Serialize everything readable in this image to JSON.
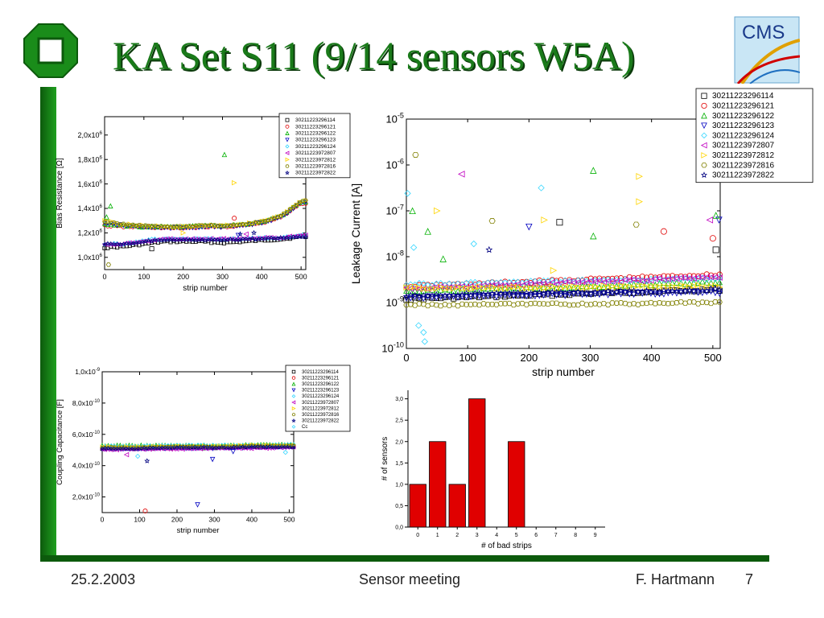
{
  "slide": {
    "title": "KA Set S11 (9/14 sensors W5A)",
    "footer_date": "25.2.2003",
    "footer_event": "Sensor meeting",
    "footer_author": "F. Hartmann",
    "page_number": "7",
    "logo_text": "CMS"
  },
  "colors": {
    "green_frame": "#1a8c1a",
    "dark_green": "#0c5a0c",
    "bar_red": "#e00000"
  },
  "series_colors": [
    "#000000",
    "#e00000",
    "#00b000",
    "#0000c0",
    "#33d6ff",
    "#c000c0",
    "#ffd400",
    "#808000",
    "#000080"
  ],
  "series_markers": [
    "square",
    "circle",
    "triangle-up",
    "triangle-down",
    "diamond",
    "triangle-left",
    "triangle-right",
    "hexagon",
    "star"
  ],
  "chart_data": [
    {
      "id": "bias",
      "type": "scatter",
      "ylabel": "Bias Resistance [Ω]",
      "xlabel": "strip number",
      "xlim": [
        0,
        512
      ],
      "ylim": [
        900000,
        2150000
      ],
      "xticks": [
        0,
        100,
        200,
        300,
        400,
        500
      ],
      "yticks": [
        1000000,
        1200000,
        1400000,
        1600000,
        1800000,
        2000000
      ],
      "ytick_labels": [
        {
          "mant": "1,0x10",
          "exp": "6"
        },
        {
          "mant": "1,2x10",
          "exp": "6"
        },
        {
          "mant": "1,4x10",
          "exp": "6"
        },
        {
          "mant": "1,6x10",
          "exp": "6"
        },
        {
          "mant": "1,8x10",
          "exp": "6"
        },
        {
          "mant": "2,0x10",
          "exp": "6"
        }
      ],
      "legend": [
        "30211223296114",
        "30211223296121",
        "30211223296122",
        "30211223296123",
        "30211223296124",
        "30211223972807",
        "30211223972812",
        "30211223972816",
        "30211223972822"
      ],
      "series": [
        {
          "name": "30211223296114",
          "x": [
            0,
            50,
            100,
            150,
            200,
            250,
            300,
            350,
            400,
            450,
            500
          ],
          "y": [
            1080000,
            1090000,
            1110000,
            1130000,
            1130000,
            1130000,
            1120000,
            1130000,
            1140000,
            1150000,
            1170000
          ]
        },
        {
          "name": "30211223296121",
          "x": [
            0,
            50,
            100,
            150,
            200,
            250,
            300,
            350,
            400,
            450,
            500
          ],
          "y": [
            1260000,
            1250000,
            1250000,
            1240000,
            1240000,
            1250000,
            1250000,
            1260000,
            1280000,
            1330000,
            1440000
          ]
        },
        {
          "name": "30211223296122",
          "x": [
            0,
            50,
            100,
            150,
            200,
            250,
            300,
            350,
            400,
            450,
            500
          ],
          "y": [
            1270000,
            1260000,
            1250000,
            1250000,
            1250000,
            1260000,
            1260000,
            1270000,
            1290000,
            1340000,
            1450000
          ]
        },
        {
          "name": "30211223296123",
          "x": [
            0,
            50,
            100,
            150,
            200,
            250,
            300,
            350,
            400,
            450,
            500
          ],
          "y": [
            1280000,
            1260000,
            1250000,
            1240000,
            1240000,
            1250000,
            1250000,
            1260000,
            1280000,
            1330000,
            1450000
          ]
        },
        {
          "name": "30211223296124",
          "x": [
            0,
            50,
            100,
            150,
            200,
            250,
            300,
            350,
            400,
            450,
            500
          ],
          "y": [
            1110000,
            1110000,
            1140000,
            1150000,
            1150000,
            1150000,
            1150000,
            1150000,
            1160000,
            1160000,
            1180000
          ]
        },
        {
          "name": "30211223972807",
          "x": [
            0,
            50,
            100,
            150,
            200,
            250,
            300,
            350,
            400,
            450,
            500
          ],
          "y": [
            1100000,
            1110000,
            1130000,
            1150000,
            1150000,
            1150000,
            1150000,
            1150000,
            1160000,
            1160000,
            1180000
          ]
        },
        {
          "name": "30211223972812",
          "x": [
            0,
            50,
            100,
            150,
            200,
            250,
            300,
            350,
            400,
            450,
            500
          ],
          "y": [
            1300000,
            1270000,
            1260000,
            1250000,
            1250000,
            1260000,
            1260000,
            1270000,
            1290000,
            1340000,
            1460000
          ]
        },
        {
          "name": "30211223972816",
          "x": [
            0,
            50,
            100,
            150,
            200,
            250,
            300,
            350,
            400,
            450,
            500
          ],
          "y": [
            1290000,
            1270000,
            1260000,
            1250000,
            1250000,
            1260000,
            1260000,
            1270000,
            1290000,
            1340000,
            1460000
          ]
        },
        {
          "name": "30211223972822",
          "x": [
            0,
            50,
            100,
            150,
            200,
            250,
            300,
            350,
            400,
            450,
            500
          ],
          "y": [
            1110000,
            1110000,
            1130000,
            1140000,
            1140000,
            1140000,
            1140000,
            1150000,
            1150000,
            1160000,
            1170000
          ]
        }
      ],
      "outliers": [
        {
          "s": 2,
          "x": 305,
          "y": 1840000
        },
        {
          "s": 6,
          "x": 330,
          "y": 1610000
        },
        {
          "s": 2,
          "x": 15,
          "y": 1420000
        },
        {
          "s": 1,
          "x": 330,
          "y": 1320000
        },
        {
          "s": 7,
          "x": 10,
          "y": 940000
        },
        {
          "s": 0,
          "x": 120,
          "y": 1070000
        },
        {
          "s": 8,
          "x": 345,
          "y": 1190000
        },
        {
          "s": 5,
          "x": 360,
          "y": 1190000
        },
        {
          "s": 6,
          "x": 200,
          "y": 1200000
        },
        {
          "s": 3,
          "x": 340,
          "y": 1180000
        },
        {
          "s": 2,
          "x": 5,
          "y": 1330000
        },
        {
          "s": 8,
          "x": 380,
          "y": 1200000
        }
      ]
    },
    {
      "id": "leak",
      "type": "scatter",
      "ylabel": "Leakage Current [A]",
      "xlabel": "strip number",
      "yscale": "log",
      "xlim": [
        0,
        512
      ],
      "ylim_exp": [
        -10,
        -5
      ],
      "xticks": [
        0,
        100,
        200,
        300,
        400,
        500
      ],
      "yticks_exp": [
        -10,
        -9,
        -8,
        -7,
        -6,
        -5
      ],
      "ytick_labels": [
        {
          "mant": "10",
          "exp": "-10"
        },
        {
          "mant": "10",
          "exp": "-9"
        },
        {
          "mant": "10",
          "exp": "-8"
        },
        {
          "mant": "10",
          "exp": "-7"
        },
        {
          "mant": "10",
          "exp": "-6"
        },
        {
          "mant": "10",
          "exp": "-5"
        }
      ],
      "legend": [
        "30211223296114",
        "30211223296121",
        "30211223296122",
        "30211223296123",
        "30211223296124",
        "30211223972807",
        "30211223972812",
        "30211223972816",
        "30211223972822"
      ],
      "series_levels_exp": [
        {
          "name": "30211223296114",
          "x": [
            0,
            100,
            200,
            300,
            400,
            500
          ],
          "y_exp": [
            -8.92,
            -8.88,
            -8.84,
            -8.8,
            -8.76,
            -8.72
          ]
        },
        {
          "name": "30211223296121",
          "x": [
            0,
            100,
            200,
            300,
            400,
            500
          ],
          "y_exp": [
            -8.65,
            -8.6,
            -8.55,
            -8.5,
            -8.45,
            -8.4
          ]
        },
        {
          "name": "30211223296122",
          "x": [
            0,
            100,
            200,
            300,
            400,
            500
          ],
          "y_exp": [
            -8.75,
            -8.72,
            -8.68,
            -8.65,
            -8.6,
            -8.55
          ]
        },
        {
          "name": "30211223296123",
          "x": [
            0,
            100,
            200,
            300,
            400,
            500
          ],
          "y_exp": [
            -8.9,
            -8.87,
            -8.84,
            -8.82,
            -8.8,
            -8.78
          ]
        },
        {
          "name": "30211223296124",
          "x": [
            0,
            100,
            200,
            300,
            400,
            500
          ],
          "y_exp": [
            -8.6,
            -8.58,
            -8.55,
            -8.52,
            -8.5,
            -8.48
          ]
        },
        {
          "name": "30211223972807",
          "x": [
            0,
            100,
            200,
            300,
            400,
            500
          ],
          "y_exp": [
            -8.7,
            -8.65,
            -8.6,
            -8.55,
            -8.5,
            -8.45
          ]
        },
        {
          "name": "30211223972812",
          "x": [
            0,
            100,
            200,
            300,
            400,
            500
          ],
          "y_exp": [
            -8.68,
            -8.68,
            -8.67,
            -8.66,
            -8.65,
            -8.64
          ]
        },
        {
          "name": "30211223972816",
          "x": [
            0,
            100,
            200,
            300,
            400,
            500
          ],
          "y_exp": [
            -9.05,
            -9.05,
            -9.04,
            -9.03,
            -9.02,
            -9.0
          ]
        },
        {
          "name": "30211223972822",
          "x": [
            0,
            100,
            200,
            300,
            400,
            500
          ],
          "y_exp": [
            -8.85,
            -8.82,
            -8.8,
            -8.78,
            -8.75,
            -8.72
          ]
        }
      ],
      "outliers_exp": [
        {
          "s": 7,
          "x": 15,
          "y": -5.78
        },
        {
          "s": 5,
          "x": 90,
          "y": -6.2
        },
        {
          "s": 2,
          "x": 305,
          "y": -6.12
        },
        {
          "s": 6,
          "x": 380,
          "y": -6.25
        },
        {
          "s": 6,
          "x": 380,
          "y": -6.8
        },
        {
          "s": 4,
          "x": 110,
          "y": -7.72
        },
        {
          "s": 4,
          "x": 2,
          "y": -6.62
        },
        {
          "s": 4,
          "x": 220,
          "y": -6.5
        },
        {
          "s": 2,
          "x": 10,
          "y": -7.0
        },
        {
          "s": 6,
          "x": 50,
          "y": -7.0
        },
        {
          "s": 0,
          "x": 250,
          "y": -7.25
        },
        {
          "s": 7,
          "x": 140,
          "y": -7.22
        },
        {
          "s": 3,
          "x": 200,
          "y": -7.35
        },
        {
          "s": 6,
          "x": 225,
          "y": -7.2
        },
        {
          "s": 7,
          "x": 375,
          "y": -7.3
        },
        {
          "s": 2,
          "x": 305,
          "y": -7.55
        },
        {
          "s": 3,
          "x": 510,
          "y": -7.2
        },
        {
          "s": 2,
          "x": 505,
          "y": -7.1
        },
        {
          "s": 5,
          "x": 495,
          "y": -7.2
        },
        {
          "s": 1,
          "x": 420,
          "y": -7.45
        },
        {
          "s": 0,
          "x": 505,
          "y": -7.85
        },
        {
          "s": 1,
          "x": 500,
          "y": -7.6
        },
        {
          "s": 8,
          "x": 135,
          "y": -7.85
        },
        {
          "s": 2,
          "x": 35,
          "y": -7.45
        },
        {
          "s": 4,
          "x": 20,
          "y": -9.5
        },
        {
          "s": 4,
          "x": 28,
          "y": -9.65
        },
        {
          "s": 4,
          "x": 30,
          "y": -9.85
        },
        {
          "s": 4,
          "x": 12,
          "y": -7.8
        },
        {
          "s": 2,
          "x": 60,
          "y": -8.05
        },
        {
          "s": 6,
          "x": 240,
          "y": -8.3
        }
      ]
    },
    {
      "id": "coupling",
      "type": "scatter",
      "ylabel": "Coupling Capacitance [F]",
      "xlabel": "strip number",
      "xlim": [
        0,
        512
      ],
      "ylim": [
        1e-10,
        1e-09
      ],
      "xticks": [
        0,
        100,
        200,
        300,
        400,
        500
      ],
      "yticks": [
        2e-10,
        4e-10,
        6e-10,
        8e-10,
        1e-09
      ],
      "ytick_labels": [
        {
          "mant": "2,0x10",
          "exp": "-10"
        },
        {
          "mant": "4,0x10",
          "exp": "-10"
        },
        {
          "mant": "6,0x10",
          "exp": "-10"
        },
        {
          "mant": "8,0x10",
          "exp": "-10"
        },
        {
          "mant": "1,0x10",
          "exp": "-9"
        }
      ],
      "legend": [
        "30211223296114",
        "30211223296121",
        "30211223296122",
        "30211223296123",
        "30211223296124",
        "30211223972807",
        "30211223972812",
        "30211223972816",
        "30211223972822",
        "Cc"
      ],
      "series": [
        {
          "name": "30211223296114",
          "x": [
            0,
            100,
            200,
            300,
            400,
            500
          ],
          "y": [
            5.1e-10,
            5.1e-10,
            5.15e-10,
            5.15e-10,
            5.2e-10,
            5.25e-10
          ]
        },
        {
          "name": "30211223296121",
          "x": [
            0,
            100,
            200,
            300,
            400,
            500
          ],
          "y": [
            5.15e-10,
            5.15e-10,
            5.2e-10,
            5.2e-10,
            5.25e-10,
            5.3e-10
          ]
        },
        {
          "name": "30211223296122",
          "x": [
            0,
            100,
            200,
            300,
            400,
            500
          ],
          "y": [
            5.3e-10,
            5.3e-10,
            5.3e-10,
            5.3e-10,
            5.35e-10,
            5.35e-10
          ]
        },
        {
          "name": "30211223296123",
          "x": [
            0,
            100,
            200,
            300,
            400,
            500
          ],
          "y": [
            5.05e-10,
            5.05e-10,
            5.1e-10,
            5.1e-10,
            5.15e-10,
            5.2e-10
          ]
        },
        {
          "name": "30211223296124",
          "x": [
            0,
            100,
            200,
            300,
            400,
            500
          ],
          "y": [
            5.25e-10,
            5.25e-10,
            5.3e-10,
            5.3e-10,
            5.3e-10,
            5.35e-10
          ]
        },
        {
          "name": "30211223972807",
          "x": [
            0,
            100,
            200,
            300,
            400,
            500
          ],
          "y": [
            5e-10,
            5.05e-10,
            5.05e-10,
            5.1e-10,
            5.1e-10,
            5.15e-10
          ]
        },
        {
          "name": "30211223972812",
          "x": [
            0,
            100,
            200,
            300,
            400,
            500
          ],
          "y": [
            5.2e-10,
            5.2e-10,
            5.25e-10,
            5.25e-10,
            5.3e-10,
            5.3e-10
          ]
        },
        {
          "name": "30211223972816",
          "x": [
            0,
            100,
            200,
            300,
            400,
            500
          ],
          "y": [
            5.15e-10,
            5.15e-10,
            5.2e-10,
            5.2e-10,
            5.25e-10,
            5.25e-10
          ]
        },
        {
          "name": "30211223972822",
          "x": [
            0,
            100,
            200,
            300,
            400,
            500
          ],
          "y": [
            5.1e-10,
            5.1e-10,
            5.15e-10,
            5.15e-10,
            5.2e-10,
            5.2e-10
          ]
        }
      ],
      "outliers": [
        {
          "s": 1,
          "x": 115,
          "y": 1.1e-10
        },
        {
          "s": 3,
          "x": 255,
          "y": 1.5e-10
        },
        {
          "s": 3,
          "x": 295,
          "y": 4.4e-10
        },
        {
          "s": 8,
          "x": 120,
          "y": 4.3e-10
        },
        {
          "s": 4,
          "x": 95,
          "y": 4.6e-10
        },
        {
          "s": 5,
          "x": 65,
          "y": 4.7e-10
        },
        {
          "s": 3,
          "x": 350,
          "y": 4.9e-10
        },
        {
          "s": 4,
          "x": 490,
          "y": 4.85e-10
        }
      ]
    },
    {
      "id": "badstrips",
      "type": "bar",
      "xlabel": "# of bad strips",
      "ylabel": "# of sensors",
      "categories": [
        0,
        1,
        2,
        3,
        4,
        5,
        6,
        7,
        8,
        9
      ],
      "values": [
        1,
        2,
        1,
        3,
        0,
        2,
        0,
        0,
        0,
        0
      ],
      "ylim": [
        0,
        3.2
      ],
      "yticks": [
        0,
        0.5,
        1.0,
        1.5,
        2.0,
        2.5,
        3.0
      ],
      "ytick_labels": [
        "0,0",
        "0,5",
        "1,0",
        "1,5",
        "2,0",
        "2,5",
        "3,0"
      ]
    }
  ]
}
